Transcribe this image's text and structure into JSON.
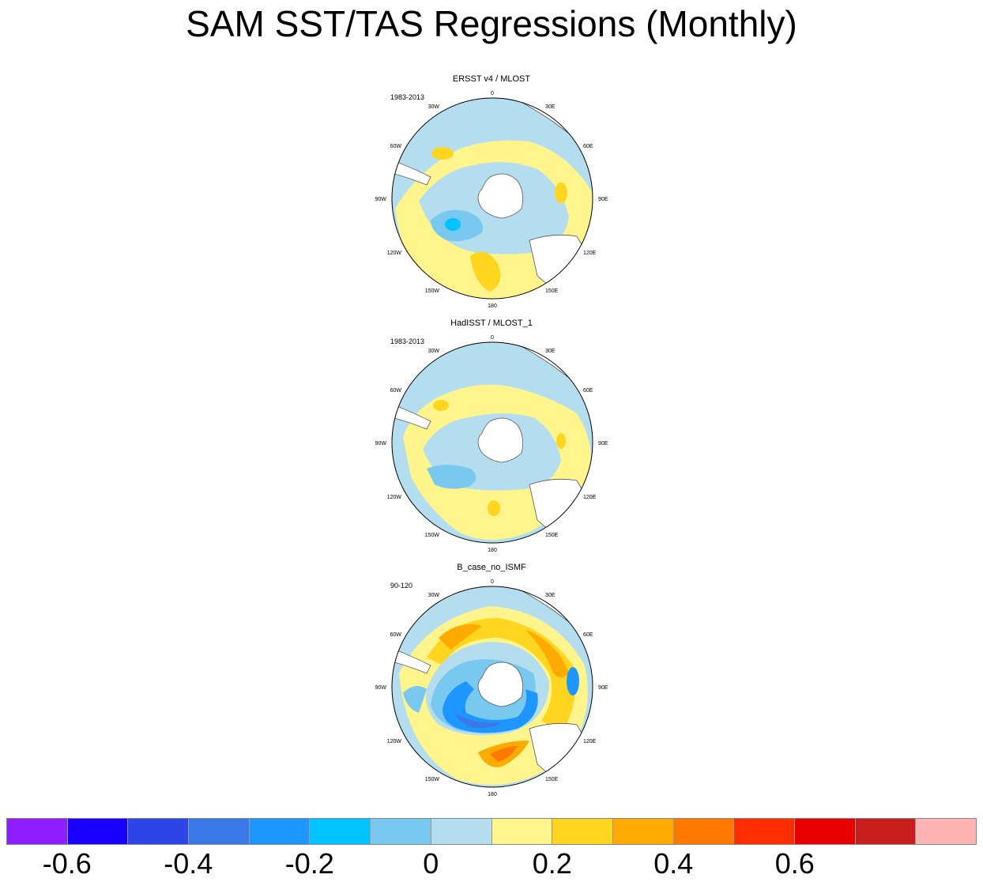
{
  "figure": {
    "title": "SAM SST/TAS Regressions (Monthly)"
  },
  "panels": [
    {
      "title": "ERSST v4 / MLOST",
      "period": "1983-2013",
      "lon_labels": [
        "0",
        "30E",
        "60E",
        "90E",
        "120E",
        "150E",
        "180",
        "150W",
        "120W",
        "90W",
        "60W",
        "30W"
      ]
    },
    {
      "title": "HadISST / MLOST_1",
      "period": "1983-2013",
      "lon_labels": [
        "0",
        "30E",
        "60E",
        "90E",
        "120E",
        "150E",
        "180",
        "150W",
        "120W",
        "90W",
        "60W",
        "30W"
      ]
    },
    {
      "title": "B_case_no_ISMF",
      "period": "90-120",
      "lon_labels": [
        "0",
        "30E",
        "60E",
        "90E",
        "120E",
        "150E",
        "180",
        "150W",
        "120W",
        "90W",
        "60W",
        "30W"
      ]
    }
  ],
  "colorbar": {
    "colors": [
      "#8c1eff",
      "#1a00ff",
      "#2d45e6",
      "#3a78e8",
      "#1e96ff",
      "#00c3ff",
      "#78c8f0",
      "#b4def0",
      "#fff58c",
      "#ffd520",
      "#ffaa00",
      "#ff7800",
      "#ff2d00",
      "#e60000",
      "#c81e1e",
      "#ffb4b4"
    ],
    "tick_labels": [
      "-0.6",
      "-0.4",
      "-0.2",
      "0",
      "0.2",
      "0.4",
      "0.6"
    ]
  },
  "map_colors": {
    "background": "#b4def0",
    "warm_light": "#fff58c",
    "warm_mid": "#ffd520",
    "warm_strong": "#ffaa00",
    "warm_stronger": "#ff7800",
    "cool_mid": "#78c8f0",
    "cool_strong": "#1e96ff",
    "cool_stronger": "#3a78e8",
    "cool_deep": "#00c3ff",
    "land": "#ffffff"
  }
}
